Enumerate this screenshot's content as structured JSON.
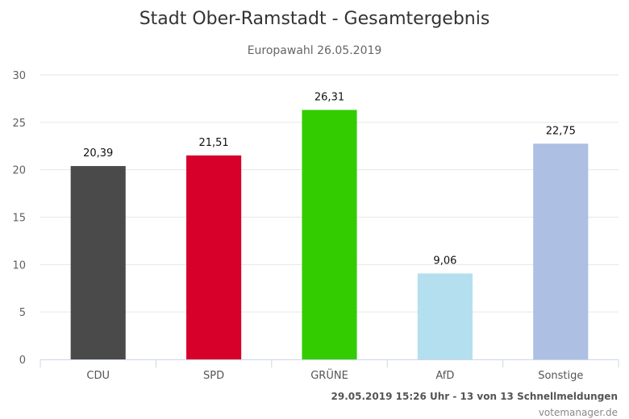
{
  "chart_data": {
    "type": "bar",
    "title": "Stadt Ober-Ramstadt - Gesamtergebnis",
    "subtitle": "Europawahl 26.05.2019",
    "categories": [
      "CDU",
      "SPD",
      "GRÜNE",
      "AfD",
      "Sonstige"
    ],
    "values": [
      20.39,
      21.51,
      26.31,
      9.06,
      22.75
    ],
    "value_labels": [
      "20,39",
      "21,51",
      "26,31",
      "9,06",
      "22,75"
    ],
    "colors": [
      "#4a4a4a",
      "#d7002b",
      "#33cc00",
      "#b3dfee",
      "#adbfe3"
    ],
    "xlabel": "",
    "ylabel": "",
    "ylim": [
      0,
      30
    ],
    "yticks": [
      0,
      5,
      10,
      15,
      20,
      25,
      30
    ],
    "grid": true,
    "legend": "none"
  },
  "footer": {
    "status": "29.05.2019 15:26 Uhr - 13 von 13 Schnellmeldungen",
    "credit": "votemanager.de"
  }
}
